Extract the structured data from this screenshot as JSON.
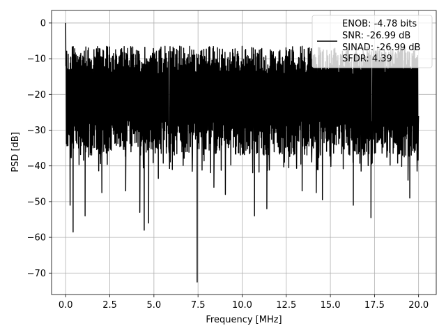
{
  "chart_data": {
    "type": "line",
    "title": "",
    "xlabel": "Frequency [MHz]",
    "ylabel": "PSD [dB]",
    "xlim": [
      -0.8,
      21.0
    ],
    "ylim": [
      -76.0,
      3.5
    ],
    "xticks": [
      0.0,
      2.5,
      5.0,
      7.5,
      10.0,
      12.5,
      15.0,
      17.5,
      20.0
    ],
    "xtick_labels": [
      "0.0",
      "2.5",
      "5.0",
      "7.5",
      "10.0",
      "12.5",
      "15.0",
      "17.5",
      "20.0"
    ],
    "yticks": [
      0,
      -10,
      -20,
      -30,
      -40,
      -50,
      -60,
      -70
    ],
    "ytick_labels": [
      "0",
      "−10",
      "−20",
      "−30",
      "−40",
      "−50",
      "−60",
      "−70"
    ],
    "grid": true,
    "legend_position": "upper-right",
    "series": [
      {
        "name": "ENOB: -4.78 bits\nSNR: -26.99 dB\nSINAD: -26.99 dB\nSFDR: 4.39",
        "color": "#000000",
        "description_of_data": "dense noise-like power spectral density from 0 to 20 MHz",
        "peak": {
          "x": 0.0,
          "y": 0.0
        },
        "upper_envelope_y": -6.5,
        "typical_floor_y": -33.0,
        "notable_dips": [
          {
            "x": 0.25,
            "y": -51.0
          },
          {
            "x": 0.42,
            "y": -58.5
          },
          {
            "x": 1.1,
            "y": -54.0
          },
          {
            "x": 2.05,
            "y": -47.5
          },
          {
            "x": 3.4,
            "y": -47.0
          },
          {
            "x": 4.2,
            "y": -53.0
          },
          {
            "x": 4.45,
            "y": -58.0
          },
          {
            "x": 4.7,
            "y": -56.0
          },
          {
            "x": 5.25,
            "y": -43.5
          },
          {
            "x": 7.45,
            "y": -72.5
          },
          {
            "x": 8.4,
            "y": -46.0
          },
          {
            "x": 9.05,
            "y": -48.0
          },
          {
            "x": 10.7,
            "y": -54.0
          },
          {
            "x": 11.4,
            "y": -52.0
          },
          {
            "x": 13.4,
            "y": -47.0
          },
          {
            "x": 14.2,
            "y": -47.5
          },
          {
            "x": 14.55,
            "y": -49.5
          },
          {
            "x": 16.3,
            "y": -51.0
          },
          {
            "x": 17.3,
            "y": -54.5
          },
          {
            "x": 19.4,
            "y": -44.0
          },
          {
            "x": 19.5,
            "y": -49.0
          }
        ]
      }
    ]
  },
  "legend": {
    "lines": [
      "ENOB: -4.78 bits",
      "SNR: -26.99 dB",
      "SINAD: -26.99 dB",
      "SFDR: 4.39"
    ]
  }
}
